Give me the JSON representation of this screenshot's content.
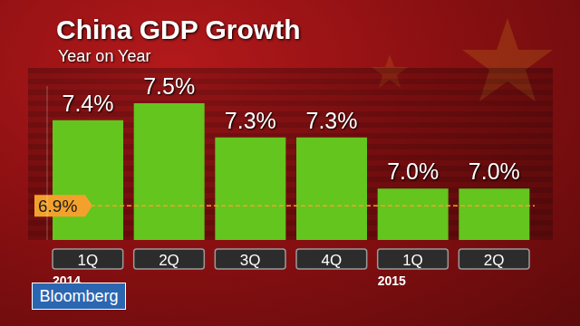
{
  "chart_data": {
    "type": "bar",
    "title": "China GDP Growth",
    "subtitle": "Year on Year",
    "categories": [
      "1Q",
      "2Q",
      "3Q",
      "4Q",
      "1Q",
      "2Q"
    ],
    "groups": [
      {
        "label": "2014",
        "start": 0
      },
      {
        "label": "2015",
        "start": 4
      }
    ],
    "values": [
      7.4,
      7.5,
      7.3,
      7.3,
      7.0,
      7.0
    ],
    "value_labels": [
      "7.4%",
      "7.5%",
      "7.3%",
      "7.3%",
      "7.0%",
      "7.0%"
    ],
    "data_labels": true,
    "color": "#63c51e",
    "ylim": [
      6.7,
      7.6
    ],
    "yticks": [],
    "tick_labels": "x",
    "grid": false,
    "reference_line": {
      "value": 6.9,
      "label": "6.9%",
      "color": "#f2a22c"
    },
    "brand": "Bloomberg"
  }
}
